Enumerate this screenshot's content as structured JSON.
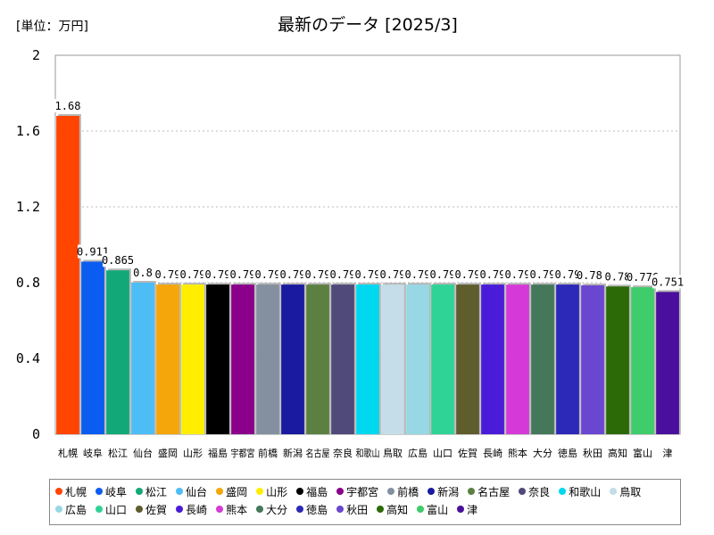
{
  "chart_data": {
    "type": "bar",
    "title": "最新のデータ [2025/3]",
    "unit_label": "[単位：万円]",
    "ylim": [
      0,
      2
    ],
    "yticks": [
      "0",
      "0.4",
      "0.8",
      "1.2",
      "1.6",
      "2"
    ],
    "ytick_values": [
      0,
      0.4,
      0.8,
      1.2,
      1.6,
      2
    ],
    "grid": true,
    "legend_position": "bottom",
    "categories": [
      "札幌",
      "岐阜",
      "松江",
      "仙台",
      "盛岡",
      "山形",
      "福島",
      "宇都宮",
      "前橋",
      "新潟",
      "名古屋",
      "奈良",
      "和歌山",
      "鳥取",
      "広島",
      "山口",
      "佐賀",
      "長崎",
      "熊本",
      "大分",
      "徳島",
      "秋田",
      "高知",
      "富山",
      "津"
    ],
    "values": [
      1.68,
      0.911,
      0.865,
      0.8,
      0.79,
      0.79,
      0.79,
      0.79,
      0.79,
      0.79,
      0.79,
      0.79,
      0.79,
      0.79,
      0.79,
      0.79,
      0.79,
      0.79,
      0.79,
      0.79,
      0.79,
      0.786,
      0.78,
      0.776,
      0.751
    ],
    "data_labels": [
      "1.68",
      "0.911",
      "0.865",
      "0.8",
      "0.79",
      "0.79",
      "0.79",
      "0.79",
      "0.79",
      "0.79",
      "0.79",
      "0.79",
      "0.79",
      "0.79",
      "0.79",
      "0.79",
      "0.79",
      "0.79",
      "0.79",
      "0.79",
      "0.79",
      "0.786",
      "0.78",
      "0.776",
      "0.751"
    ],
    "colors": [
      "#ff4500",
      "#0b5cf0",
      "#13a878",
      "#4dbdf5",
      "#f5a60a",
      "#ffee00",
      "#000000",
      "#8b008b",
      "#8490a0",
      "#1a1aa0",
      "#5c8041",
      "#4f4a7a",
      "#00d8f0",
      "#c4dde8",
      "#98d8e4",
      "#2fd396",
      "#5f5c2e",
      "#4a1bd8",
      "#d53ad8",
      "#45775b",
      "#2c28b8",
      "#6a47d0",
      "#2c6a07",
      "#3fcc6a",
      "#4a0f9c"
    ]
  }
}
